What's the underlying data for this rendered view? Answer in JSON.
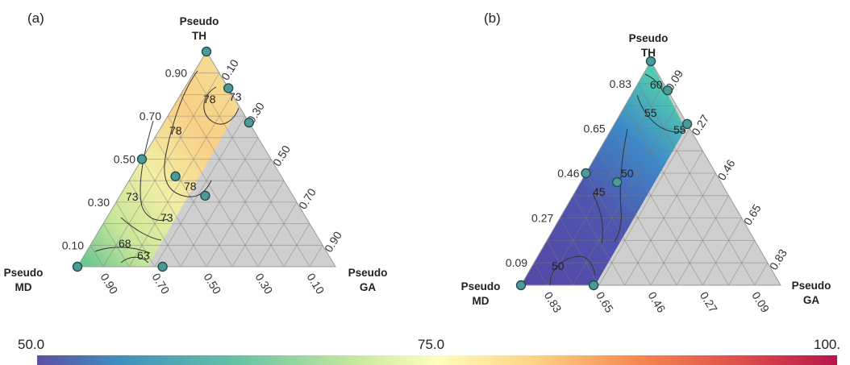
{
  "chart_data": [
    {
      "type": "ternary-contour",
      "panel_label": "(a)",
      "vertices": {
        "top": [
          "Pseudo",
          "TH"
        ],
        "left": [
          "Pseudo",
          "MD"
        ],
        "right": [
          "Pseudo",
          "GA"
        ]
      },
      "ticks_left": [
        "0.90",
        "0.70",
        "0.50",
        "0.30",
        "0.10"
      ],
      "ticks_right": [
        "0.10",
        "0.30",
        "0.50",
        "0.70",
        "0.90"
      ],
      "ticks_bottom": [
        "0.90",
        "0.70",
        "0.50",
        "0.30",
        "0.10"
      ],
      "contour_levels": [
        "78",
        "73",
        "78",
        "78",
        "73",
        "73",
        "68",
        "63"
      ],
      "design_points": [
        {
          "TH": 1.0,
          "GA": 0.0
        },
        {
          "TH": 0.83,
          "GA": 0.17
        },
        {
          "TH": 0.67,
          "GA": 0.33
        },
        {
          "TH": 0.5,
          "GA": 0.0
        },
        {
          "TH": 0.42,
          "GA": 0.17
        },
        {
          "TH": 0.33,
          "GA": 0.33
        },
        {
          "TH": 0.0,
          "GA": 0.0
        },
        {
          "TH": 0.0,
          "GA": 0.33
        }
      ]
    },
    {
      "type": "ternary-contour",
      "panel_label": "(b)",
      "vertices": {
        "top": [
          "Pseudo",
          "TH"
        ],
        "left": [
          "Pseudo",
          "MD"
        ],
        "right": [
          "Pseudo",
          "GA"
        ]
      },
      "ticks_left": [
        "0.83",
        "0.65",
        "0.46",
        "0.27",
        "0.09"
      ],
      "ticks_right": [
        "0.09",
        "0.27",
        "0.46",
        "0.65",
        "0.83"
      ],
      "ticks_bottom": [
        "0.83",
        "0.65",
        "0.46",
        "0.27",
        "0.09"
      ],
      "contour_levels": [
        "60",
        "55",
        "55",
        "50",
        "45",
        "50"
      ],
      "design_points": [
        {
          "TH": 1.0,
          "GA": 0.0
        },
        {
          "TH": 0.87,
          "GA": 0.13
        },
        {
          "TH": 0.72,
          "GA": 0.28
        },
        {
          "TH": 0.5,
          "GA": 0.0
        },
        {
          "TH": 0.46,
          "GA": 0.14
        },
        {
          "TH": 0.0,
          "GA": 0.0
        },
        {
          "TH": 0.0,
          "GA": 0.28
        }
      ]
    }
  ],
  "colorbar": {
    "min": "50.0",
    "mid": "75.0",
    "max": "100."
  }
}
